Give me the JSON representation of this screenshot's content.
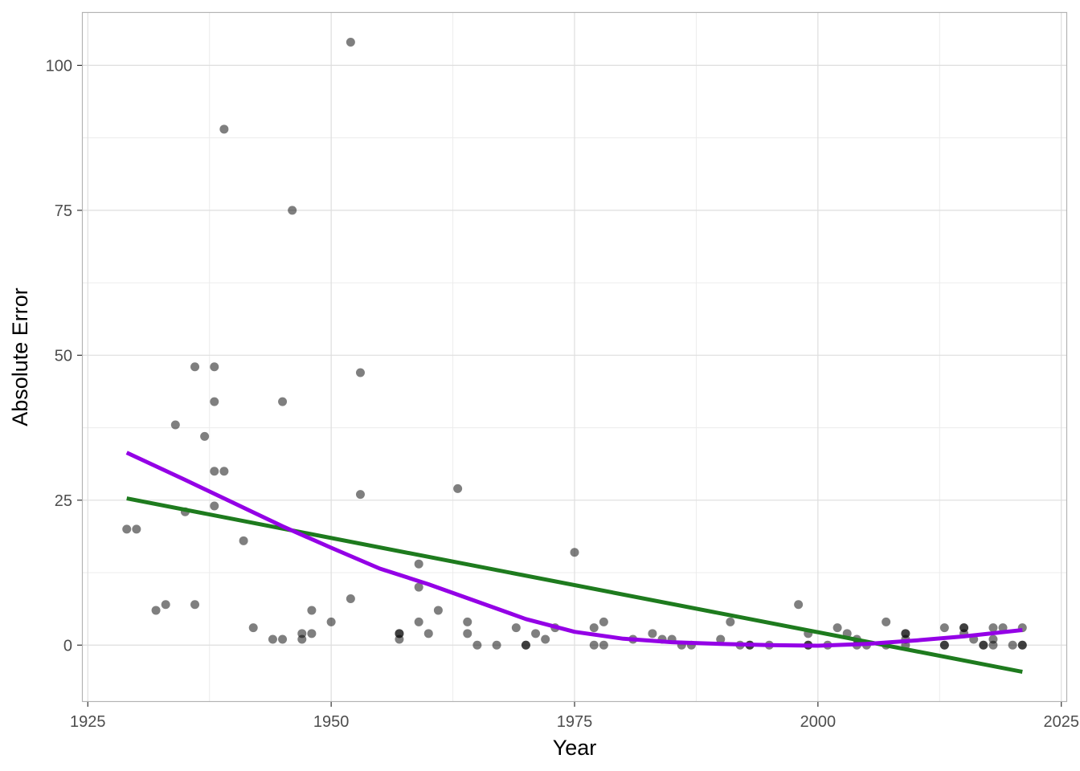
{
  "chart_data": {
    "type": "scatter",
    "title": "",
    "xlabel": "Year",
    "ylabel": "Absolute Error",
    "xlim": [
      1924.4,
      2025.6
    ],
    "ylim": [
      -9.8,
      109.2
    ],
    "x_ticks": [
      1925,
      1950,
      1975,
      2000,
      2025
    ],
    "x_tick_labels": [
      "1925",
      "1950",
      "1975",
      "2000",
      "2025"
    ],
    "y_ticks": [
      0,
      25,
      50,
      75,
      100
    ],
    "y_tick_labels": [
      "0",
      "25",
      "50",
      "75",
      "100"
    ],
    "x_minor": [
      1937.5,
      1962.5,
      1987.5,
      2012.5
    ],
    "y_minor": [
      12.5,
      37.5,
      62.5,
      87.5
    ],
    "grid": true,
    "colors": {
      "points": "#000000",
      "linear_fit": "#1e7b1e",
      "smooth_fit": "#9400e6",
      "grid": "#dedede",
      "panel_border": "#b3b3b3"
    },
    "points": [
      [
        1929,
        20
      ],
      [
        1930,
        20
      ],
      [
        1932,
        6
      ],
      [
        1933,
        7
      ],
      [
        1934,
        38
      ],
      [
        1935,
        23
      ],
      [
        1936,
        48
      ],
      [
        1936,
        7
      ],
      [
        1937,
        36
      ],
      [
        1938,
        48
      ],
      [
        1938,
        42
      ],
      [
        1938,
        30
      ],
      [
        1938,
        24
      ],
      [
        1939,
        89
      ],
      [
        1939,
        30
      ],
      [
        1941,
        18
      ],
      [
        1942,
        3
      ],
      [
        1944,
        1
      ],
      [
        1945,
        42
      ],
      [
        1945,
        1
      ],
      [
        1946,
        75
      ],
      [
        1947,
        2
      ],
      [
        1947,
        1
      ],
      [
        1948,
        6
      ],
      [
        1948,
        2
      ],
      [
        1950,
        4
      ],
      [
        1952,
        104
      ],
      [
        1952,
        8
      ],
      [
        1953,
        47
      ],
      [
        1953,
        26
      ],
      [
        1957,
        2
      ],
      [
        1957,
        2
      ],
      [
        1957,
        1
      ],
      [
        1959,
        14
      ],
      [
        1959,
        10
      ],
      [
        1959,
        4
      ],
      [
        1960,
        2
      ],
      [
        1961,
        6
      ],
      [
        1963,
        27
      ],
      [
        1964,
        4
      ],
      [
        1964,
        2
      ],
      [
        1965,
        0
      ],
      [
        1967,
        0
      ],
      [
        1969,
        3
      ],
      [
        1970,
        0
      ],
      [
        1970,
        0
      ],
      [
        1971,
        2
      ],
      [
        1972,
        1
      ],
      [
        1973,
        3
      ],
      [
        1975,
        16
      ],
      [
        1977,
        3
      ],
      [
        1977,
        0
      ],
      [
        1978,
        4
      ],
      [
        1978,
        0
      ],
      [
        1981,
        1
      ],
      [
        1983,
        2
      ],
      [
        1984,
        1
      ],
      [
        1985,
        1
      ],
      [
        1986,
        0
      ],
      [
        1987,
        0
      ],
      [
        1990,
        1
      ],
      [
        1991,
        4
      ],
      [
        1992,
        0
      ],
      [
        1993,
        0
      ],
      [
        1993,
        0
      ],
      [
        1995,
        0
      ],
      [
        1998,
        7
      ],
      [
        1999,
        2
      ],
      [
        1999,
        0
      ],
      [
        1999,
        0
      ],
      [
        2001,
        0
      ],
      [
        2002,
        3
      ],
      [
        2003,
        2
      ],
      [
        2004,
        1
      ],
      [
        2004,
        0
      ],
      [
        2005,
        0
      ],
      [
        2007,
        4
      ],
      [
        2007,
        0
      ],
      [
        2009,
        2
      ],
      [
        2009,
        2
      ],
      [
        2009,
        1
      ],
      [
        2009,
        0
      ],
      [
        2013,
        3
      ],
      [
        2013,
        0
      ],
      [
        2013,
        0
      ],
      [
        2015,
        3
      ],
      [
        2015,
        3
      ],
      [
        2015,
        2
      ],
      [
        2016,
        1
      ],
      [
        2017,
        0
      ],
      [
        2017,
        0
      ],
      [
        2018,
        3
      ],
      [
        2018,
        1
      ],
      [
        2018,
        0
      ],
      [
        2019,
        3
      ],
      [
        2020,
        0
      ],
      [
        2021,
        3
      ],
      [
        2021,
        0
      ],
      [
        2021,
        0
      ]
    ],
    "series": [
      {
        "name": "linear fit",
        "color": "#1e7b1e",
        "x": [
          1929,
          2021
        ],
        "y": [
          25.3,
          -4.6
        ]
      },
      {
        "name": "smooth fit",
        "color": "#9400e6",
        "x": [
          1929,
          1935,
          1940,
          1945,
          1950,
          1955,
          1960,
          1965,
          1970,
          1975,
          1980,
          1985,
          1990,
          1995,
          2000,
          2005,
          2010,
          2015,
          2021
        ],
        "y": [
          33.2,
          28.5,
          24.5,
          20.5,
          16.8,
          13.2,
          10.5,
          7.5,
          4.5,
          2.3,
          1.1,
          0.5,
          0.2,
          0.0,
          -0.1,
          0.2,
          0.8,
          1.5,
          2.6
        ]
      }
    ]
  }
}
